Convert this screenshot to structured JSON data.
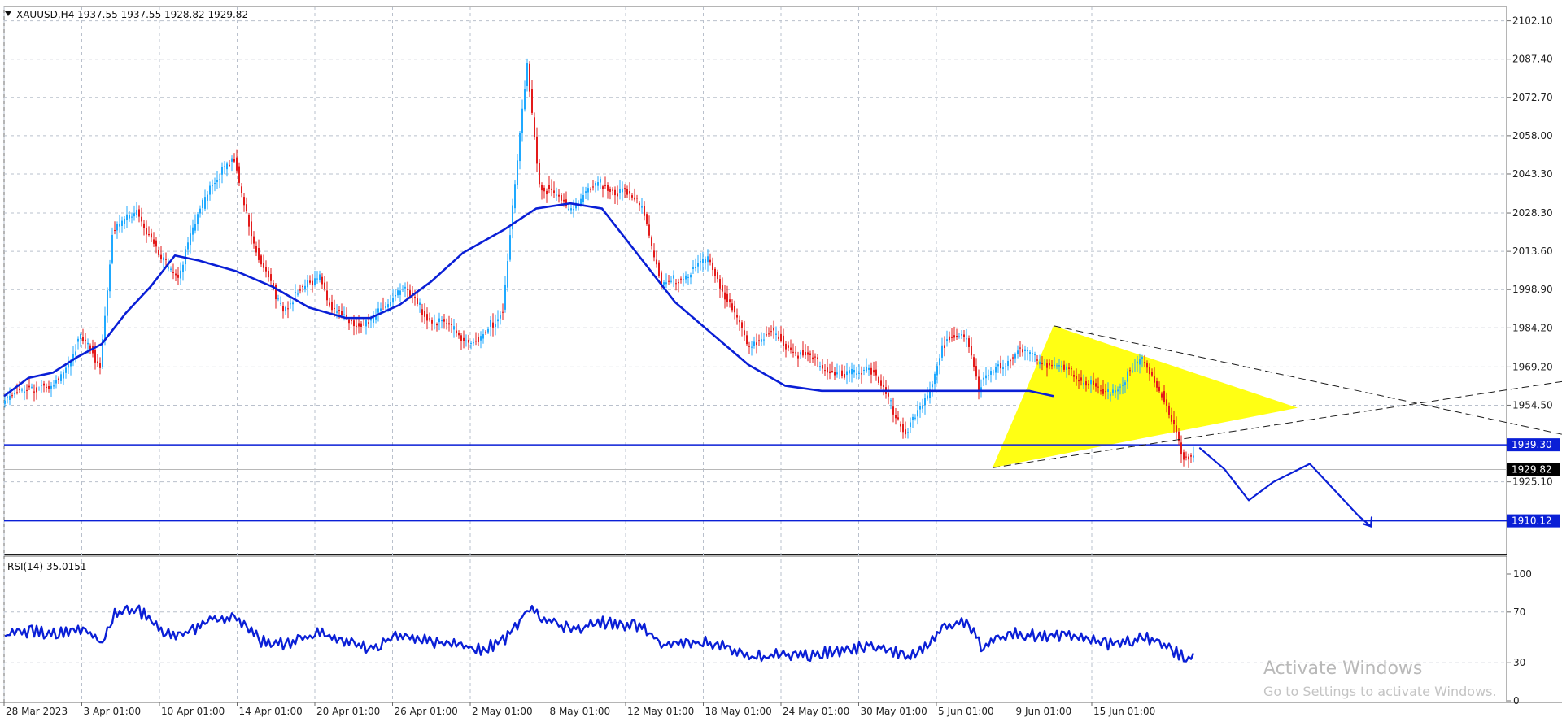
{
  "chart_data": {
    "type": "candlestick",
    "symbol_header": "XAUUSD,H4  1937.55 1937.55 1928.82 1929.82",
    "price_axis": {
      "ylim": [
        1897.2,
        2107.6
      ],
      "ticks": [
        "2102.10",
        "2087.40",
        "2072.70",
        "2058.00",
        "2043.30",
        "2028.30",
        "2013.60",
        "1998.90",
        "1984.20",
        "1969.20",
        "1954.50",
        "1925.10"
      ]
    },
    "time_axis_labels": [
      "28 Mar 2023",
      "3 Apr 01:00",
      "10 Apr 01:00",
      "14 Apr 01:00",
      "20 Apr 01:00",
      "26 Apr 01:00",
      "2 May 01:00",
      "8 May 01:00",
      "12 May 01:00",
      "18 May 01:00",
      "24 May 01:00",
      "30 May 01:00",
      "5 Jun 01:00",
      "9 Jun 01:00",
      "15 Jun 01:00"
    ],
    "price_path": [
      [
        0,
        1955
      ],
      [
        10,
        1962
      ],
      [
        20,
        1960
      ],
      [
        32,
        1980
      ],
      [
        40,
        1970
      ],
      [
        45,
        2020
      ],
      [
        55,
        2030
      ],
      [
        65,
        2010
      ],
      [
        72,
        2005
      ],
      [
        85,
        2040
      ],
      [
        95,
        2048
      ],
      [
        105,
        2010
      ],
      [
        115,
        1992
      ],
      [
        130,
        2005
      ],
      [
        135,
        1990
      ],
      [
        150,
        1985
      ],
      [
        163,
        2000
      ],
      [
        175,
        1988
      ],
      [
        195,
        1978
      ],
      [
        205,
        1992
      ],
      [
        215,
        2085
      ],
      [
        220,
        2040
      ],
      [
        232,
        2030
      ],
      [
        245,
        2040
      ],
      [
        262,
        2032
      ],
      [
        270,
        2000
      ],
      [
        290,
        2010
      ],
      [
        305,
        1978
      ],
      [
        315,
        1982
      ],
      [
        325,
        1975
      ],
      [
        345,
        1965
      ],
      [
        355,
        1970
      ],
      [
        370,
        1944
      ],
      [
        378,
        1955
      ],
      [
        385,
        1978
      ],
      [
        395,
        1982
      ],
      [
        400,
        1962
      ],
      [
        405,
        1966
      ],
      [
        415,
        1975
      ],
      [
        425,
        1972
      ],
      [
        440,
        1966
      ],
      [
        452,
        1958
      ],
      [
        468,
        1972
      ],
      [
        475,
        1958
      ],
      [
        484,
        1935
      ],
      [
        487,
        1936
      ]
    ],
    "moving_average_path": [
      [
        0,
        1958
      ],
      [
        10,
        1965
      ],
      [
        20,
        1967
      ],
      [
        30,
        1973
      ],
      [
        40,
        1978
      ],
      [
        50,
        1990
      ],
      [
        60,
        2000
      ],
      [
        70,
        2012
      ],
      [
        80,
        2010
      ],
      [
        95,
        2006
      ],
      [
        110,
        2000
      ],
      [
        125,
        1992
      ],
      [
        140,
        1988
      ],
      [
        150,
        1988
      ],
      [
        162,
        1993
      ],
      [
        175,
        2002
      ],
      [
        188,
        2013
      ],
      [
        205,
        2022
      ],
      [
        218,
        2030
      ],
      [
        232,
        2032
      ],
      [
        245,
        2030
      ],
      [
        260,
        2012
      ],
      [
        275,
        1994
      ],
      [
        290,
        1982
      ],
      [
        305,
        1970
      ],
      [
        320,
        1962
      ],
      [
        335,
        1960
      ],
      [
        350,
        1960
      ],
      [
        365,
        1960
      ],
      [
        380,
        1960
      ],
      [
        395,
        1960
      ],
      [
        410,
        1960
      ],
      [
        420,
        1960
      ],
      [
        430,
        1958
      ]
    ],
    "levels": [
      {
        "price": 1939.3,
        "label": "1939.30"
      },
      {
        "price": 1910.12,
        "label": "1910.12"
      }
    ],
    "current_price": {
      "price": 1929.82,
      "label": "1929.82"
    },
    "triangle_vertices": [
      [
        405,
        1930.5
      ],
      [
        430,
        1985
      ],
      [
        530,
        1953.5
      ]
    ],
    "trendlines": [
      {
        "from": [
          430,
          1985
        ],
        "to": [
          680,
          1935
        ]
      },
      {
        "from": [
          405,
          1930.5
        ],
        "to": [
          680,
          1969.5
        ]
      }
    ],
    "projection_path": [
      [
        490,
        1938
      ],
      [
        500,
        1930
      ],
      [
        510,
        1918
      ],
      [
        520,
        1925
      ],
      [
        535,
        1932
      ],
      [
        545,
        1922
      ],
      [
        555,
        1912
      ],
      [
        560,
        1908
      ]
    ],
    "rsi": {
      "label": "RSI(14) 35.0151",
      "ylim": [
        0,
        100
      ],
      "ticks": [
        "100",
        "70",
        "30",
        "0"
      ],
      "values": [
        [
          0,
          51
        ],
        [
          10,
          55
        ],
        [
          20,
          53
        ],
        [
          32,
          56
        ],
        [
          40,
          46
        ],
        [
          45,
          70
        ],
        [
          55,
          71
        ],
        [
          65,
          55
        ],
        [
          72,
          52
        ],
        [
          85,
          64
        ],
        [
          95,
          66
        ],
        [
          105,
          47
        ],
        [
          115,
          44
        ],
        [
          130,
          54
        ],
        [
          135,
          47
        ],
        [
          150,
          42
        ],
        [
          163,
          52
        ],
        [
          175,
          47
        ],
        [
          195,
          40
        ],
        [
          205,
          48
        ],
        [
          215,
          74
        ],
        [
          220,
          66
        ],
        [
          232,
          56
        ],
        [
          245,
          62
        ],
        [
          262,
          58
        ],
        [
          270,
          44
        ],
        [
          290,
          46
        ],
        [
          305,
          34
        ],
        [
          315,
          36
        ],
        [
          325,
          35
        ],
        [
          345,
          40
        ],
        [
          355,
          44
        ],
        [
          370,
          35
        ],
        [
          378,
          45
        ],
        [
          385,
          58
        ],
        [
          395,
          62
        ],
        [
          400,
          42
        ],
        [
          405,
          48
        ],
        [
          415,
          54
        ],
        [
          425,
          50
        ],
        [
          440,
          52
        ],
        [
          452,
          44
        ],
        [
          468,
          50
        ],
        [
          475,
          44
        ],
        [
          484,
          34
        ],
        [
          487,
          35
        ]
      ]
    },
    "watermark": {
      "line1": "Activate Windows",
      "line2": "Go to Settings to activate Windows."
    },
    "colors": {
      "blue": "#0a1fd6",
      "bull": "#1fa9ff",
      "bear": "#e31a1a",
      "triangle": "#ffff14",
      "grid": "#b9c0cc"
    }
  }
}
